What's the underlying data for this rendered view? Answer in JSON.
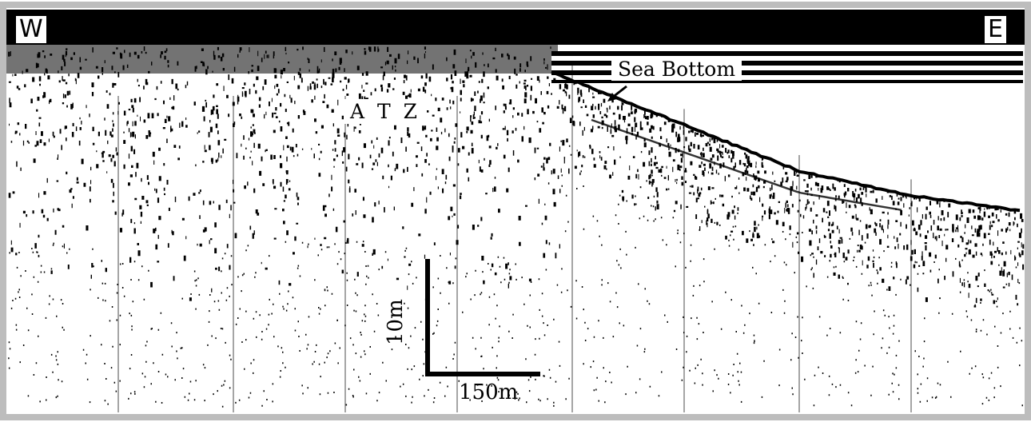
{
  "labels": {
    "west": "W",
    "east": "E",
    "atz": "A T Z",
    "sea_bottom": "Sea Bottom"
  },
  "scale_bar": {
    "vertical": "10m",
    "horizontal": "150m"
  },
  "colors": {
    "background": "#cfcfcf",
    "profile_ink": "#000000",
    "water": "#ffffff",
    "labels_bg": "#ffffff"
  }
}
